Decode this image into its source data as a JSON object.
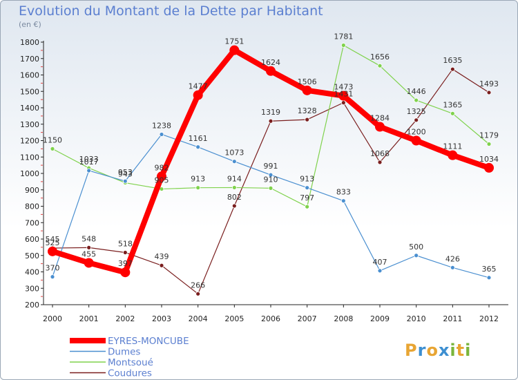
{
  "header": {
    "title": "Evolution du Montant de la Dette par Habitant",
    "unit": "(en €)"
  },
  "logo": {
    "letters": [
      "P",
      "r",
      "o",
      "x",
      "i",
      "t",
      "i"
    ],
    "colors": [
      "#e8a533",
      "#3d8fd1",
      "#e8a533",
      "#3d8fd1",
      "#7ab53b",
      "#e8a533",
      "#7ab53b"
    ]
  },
  "chart_data": {
    "type": "line",
    "x": [
      2000,
      2001,
      2002,
      2003,
      2004,
      2005,
      2006,
      2007,
      2008,
      2009,
      2010,
      2011,
      2012
    ],
    "ylim": [
      200,
      1800
    ],
    "yticks": [
      200,
      300,
      400,
      500,
      600,
      700,
      800,
      900,
      1000,
      1100,
      1200,
      1300,
      1400,
      1500,
      1600,
      1700,
      1800
    ],
    "grid": false,
    "legend_position": "bottom-left",
    "series": [
      {
        "name": "EYRES-MONCUBE",
        "color": "#ff0000",
        "values": [
          525,
          455,
          397,
          982,
          1477,
          1751,
          1624,
          1506,
          1473,
          1284,
          1200,
          1111,
          1034
        ]
      },
      {
        "name": "Dumes",
        "color": "#4a8fd0",
        "values": [
          370,
          1017,
          953,
          1238,
          1161,
          1073,
          991,
          913,
          833,
          407,
          500,
          426,
          365
        ]
      },
      {
        "name": "Montsoué",
        "color": "#7fd24c",
        "values": [
          1150,
          1033,
          943,
          905,
          913,
          914,
          910,
          797,
          1781,
          1656,
          1446,
          1365,
          1179
        ]
      },
      {
        "name": "Coudures",
        "color": "#7a1e1e",
        "values": [
          545,
          548,
          518,
          439,
          266,
          802,
          1319,
          1328,
          1431,
          1068,
          1325,
          1635,
          1493
        ]
      }
    ]
  }
}
